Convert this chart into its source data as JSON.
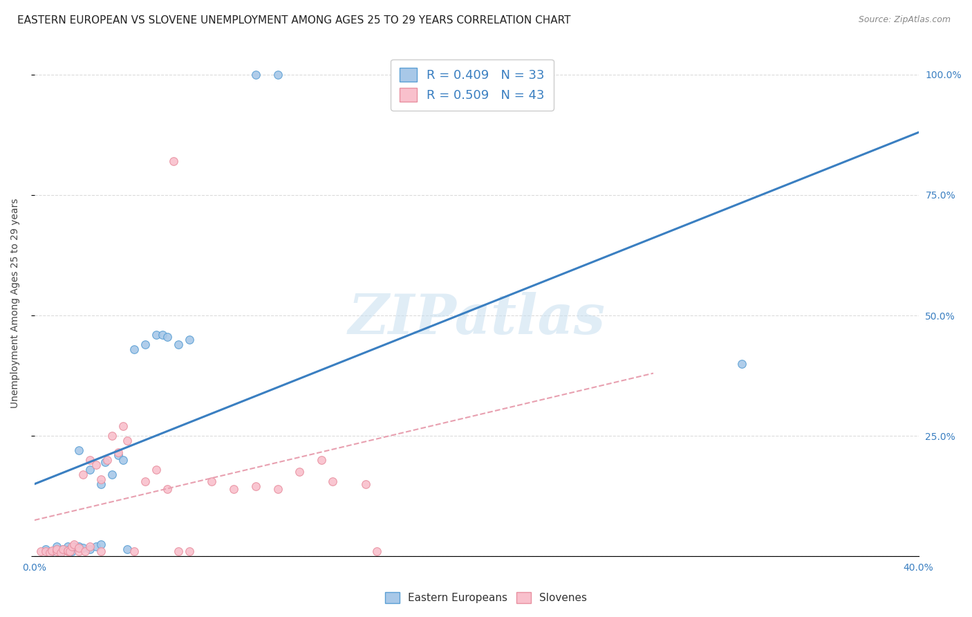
{
  "title": "EASTERN EUROPEAN VS SLOVENE UNEMPLOYMENT AMONG AGES 25 TO 29 YEARS CORRELATION CHART",
  "source": "Source: ZipAtlas.com",
  "ylabel": "Unemployment Among Ages 25 to 29 years",
  "x_min": 0.0,
  "x_max": 0.4,
  "y_min": 0.0,
  "y_max": 1.05,
  "x_ticks": [
    0.0,
    0.1,
    0.2,
    0.3,
    0.4
  ],
  "y_ticks": [
    0.0,
    0.25,
    0.5,
    0.75,
    1.0
  ],
  "y_tick_labels_right": [
    "",
    "25.0%",
    "50.0%",
    "75.0%",
    "100.0%"
  ],
  "blue_color": "#a8c8e8",
  "blue_edge_color": "#5a9fd4",
  "blue_line_color": "#3a7fc1",
  "pink_color": "#f9c0cc",
  "pink_edge_color": "#e890a0",
  "pink_line_color": "#e8a0b0",
  "watermark_text": "ZIPatlas",
  "legend_line1": "R = 0.409   N = 33",
  "legend_line2": "R = 0.509   N = 43",
  "legend_label1": "Eastern Europeans",
  "legend_label2": "Slovenes",
  "legend_text_color": "#3a7fc1",
  "blue_scatter_x": [
    0.005,
    0.008,
    0.01,
    0.01,
    0.012,
    0.013,
    0.015,
    0.016,
    0.017,
    0.018,
    0.02,
    0.022,
    0.025,
    0.028,
    0.03,
    0.032,
    0.035,
    0.038,
    0.04,
    0.042,
    0.045,
    0.05,
    0.055,
    0.058,
    0.06,
    0.065,
    0.07,
    0.02,
    0.025,
    0.03,
    0.1,
    0.11,
    0.32
  ],
  "blue_scatter_y": [
    0.015,
    0.01,
    0.015,
    0.02,
    0.01,
    0.015,
    0.02,
    0.015,
    0.01,
    0.02,
    0.02,
    0.018,
    0.015,
    0.02,
    0.025,
    0.195,
    0.17,
    0.21,
    0.2,
    0.015,
    0.43,
    0.44,
    0.46,
    0.46,
    0.455,
    0.44,
    0.45,
    0.22,
    0.18,
    0.15,
    1.0,
    1.0,
    0.4
  ],
  "pink_scatter_x": [
    0.003,
    0.005,
    0.007,
    0.008,
    0.01,
    0.01,
    0.012,
    0.013,
    0.015,
    0.015,
    0.016,
    0.017,
    0.018,
    0.02,
    0.02,
    0.022,
    0.023,
    0.025,
    0.025,
    0.028,
    0.03,
    0.03,
    0.033,
    0.035,
    0.038,
    0.04,
    0.042,
    0.045,
    0.05,
    0.055,
    0.06,
    0.065,
    0.07,
    0.08,
    0.09,
    0.1,
    0.11,
    0.12,
    0.13,
    0.135,
    0.15,
    0.155,
    0.063
  ],
  "pink_scatter_y": [
    0.01,
    0.01,
    0.008,
    0.012,
    0.01,
    0.015,
    0.008,
    0.015,
    0.01,
    0.012,
    0.01,
    0.02,
    0.025,
    0.01,
    0.018,
    0.17,
    0.01,
    0.02,
    0.2,
    0.19,
    0.01,
    0.16,
    0.2,
    0.25,
    0.215,
    0.27,
    0.24,
    0.01,
    0.155,
    0.18,
    0.14,
    0.01,
    0.01,
    0.155,
    0.14,
    0.145,
    0.14,
    0.175,
    0.2,
    0.155,
    0.15,
    0.01,
    0.82
  ],
  "blue_line_x": [
    0.0,
    0.4
  ],
  "blue_line_y": [
    0.15,
    0.88
  ],
  "pink_line_x": [
    0.0,
    0.28
  ],
  "pink_line_y": [
    0.075,
    0.38
  ],
  "grid_color": "#d8d8d8",
  "background_color": "#ffffff",
  "title_fontsize": 11,
  "axis_label_fontsize": 10,
  "tick_fontsize": 10,
  "marker_size": 70
}
